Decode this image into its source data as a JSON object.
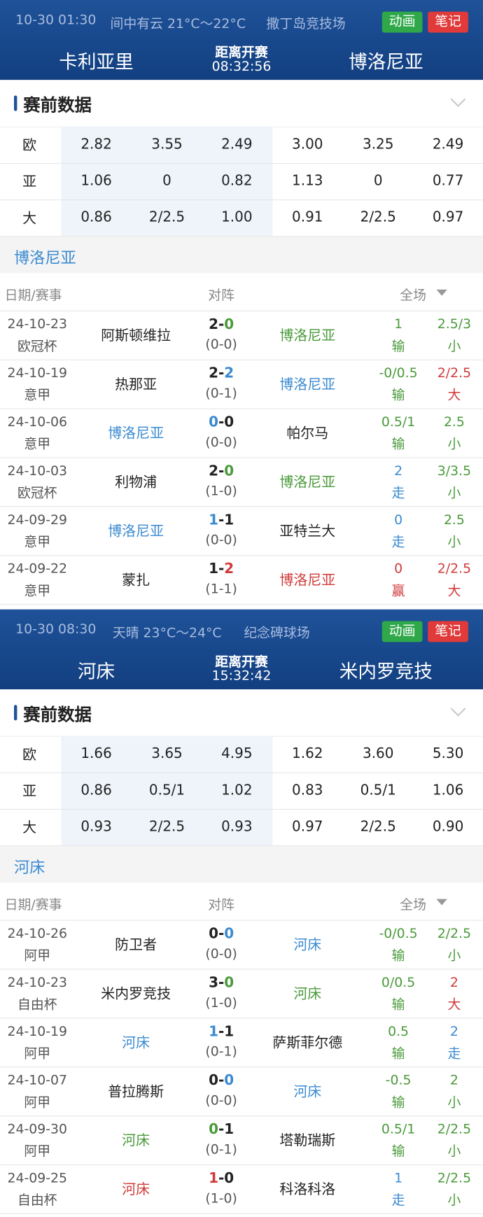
{
  "matches": [
    {
      "time": "10-30 01:30",
      "weather": "间中有云 21°C～22°C",
      "venue": "撒丁岛竞技场",
      "btn_anim": "动画",
      "btn_note": "笔记",
      "home": "卡利亚里",
      "away": "博洛尼亚",
      "countdown_label": "距离开赛",
      "countdown": "08:32:56",
      "section_title": "赛前数据",
      "odds": [
        [
          "欧",
          "2.82",
          "3.55",
          "2.49",
          "3.00",
          "3.25",
          "2.49"
        ],
        [
          "亚",
          "1.06",
          "0",
          "0.82",
          "1.13",
          "0",
          "0.77"
        ],
        [
          "大",
          "0.86",
          "2/2.5",
          "1.00",
          "0.91",
          "2/2.5",
          "0.97"
        ]
      ],
      "team_label": "博洛尼亚",
      "list_header": {
        "date": "日期/赛事",
        "vs": "对阵",
        "full": "全场"
      },
      "rows": [
        {
          "date": "24-10-23",
          "comp": "欧冠杯",
          "home": "阿斯顿维拉",
          "home_color": "#222",
          "score": [
            "2",
            "-",
            "0"
          ],
          "score_colors": [
            "#222",
            "#222",
            "#4a9a3a"
          ],
          "ht": "(0-0)",
          "away": "博洛尼亚",
          "away_color": "#4a9a3a",
          "hcap": "1",
          "hcap_res": "输",
          "hcap_color": "#4a9a3a",
          "total": "2.5/3",
          "total_res": "小",
          "total_color": "#4a9a3a"
        },
        {
          "date": "24-10-19",
          "comp": "意甲",
          "home": "热那亚",
          "home_color": "#222",
          "score": [
            "2",
            "-",
            "2"
          ],
          "score_colors": [
            "#222",
            "#222",
            "#3a8ad0"
          ],
          "ht": "(0-1)",
          "away": "博洛尼亚",
          "away_color": "#3a8ad0",
          "hcap": "-0/0.5",
          "hcap_res": "输",
          "hcap_color": "#4a9a3a",
          "total": "2/2.5",
          "total_res": "大",
          "total_color": "#d03a3a"
        },
        {
          "date": "24-10-06",
          "comp": "意甲",
          "home": "博洛尼亚",
          "home_color": "#3a8ad0",
          "score": [
            "0",
            "-",
            "0"
          ],
          "score_colors": [
            "#3a8ad0",
            "#222",
            "#222"
          ],
          "ht": "(0-0)",
          "away": "帕尔马",
          "away_color": "#222",
          "hcap": "0.5/1",
          "hcap_res": "输",
          "hcap_color": "#4a9a3a",
          "total": "2.5",
          "total_res": "小",
          "total_color": "#4a9a3a"
        },
        {
          "date": "24-10-03",
          "comp": "欧冠杯",
          "home": "利物浦",
          "home_color": "#222",
          "score": [
            "2",
            "-",
            "0"
          ],
          "score_colors": [
            "#222",
            "#222",
            "#4a9a3a"
          ],
          "ht": "(1-0)",
          "away": "博洛尼亚",
          "away_color": "#4a9a3a",
          "hcap": "2",
          "hcap_res": "走",
          "hcap_color": "#3a8ad0",
          "total": "3/3.5",
          "total_res": "小",
          "total_color": "#4a9a3a"
        },
        {
          "date": "24-09-29",
          "comp": "意甲",
          "home": "博洛尼亚",
          "home_color": "#3a8ad0",
          "score": [
            "1",
            "-",
            "1"
          ],
          "score_colors": [
            "#3a8ad0",
            "#222",
            "#222"
          ],
          "ht": "(0-0)",
          "away": "亚特兰大",
          "away_color": "#222",
          "hcap": "0",
          "hcap_res": "走",
          "hcap_color": "#3a8ad0",
          "total": "2.5",
          "total_res": "小",
          "total_color": "#4a9a3a"
        },
        {
          "date": "24-09-22",
          "comp": "意甲",
          "home": "蒙扎",
          "home_color": "#222",
          "score": [
            "1",
            "-",
            "2"
          ],
          "score_colors": [
            "#222",
            "#222",
            "#d03a3a"
          ],
          "ht": "(1-1)",
          "away": "博洛尼亚",
          "away_color": "#d03a3a",
          "hcap": "0",
          "hcap_res": "赢",
          "hcap_color": "#d03a3a",
          "total": "2/2.5",
          "total_res": "大",
          "total_color": "#d03a3a"
        }
      ]
    },
    {
      "time": "10-30 08:30",
      "weather": "天晴 23°C～24°C",
      "venue": "纪念碑球场",
      "btn_anim": "动画",
      "btn_note": "笔记",
      "home": "河床",
      "away": "米内罗竞技",
      "countdown_label": "距离开赛",
      "countdown": "15:32:42",
      "section_title": "赛前数据",
      "odds": [
        [
          "欧",
          "1.66",
          "3.65",
          "4.95",
          "1.62",
          "3.60",
          "5.30"
        ],
        [
          "亚",
          "0.86",
          "0.5/1",
          "1.02",
          "0.83",
          "0.5/1",
          "1.06"
        ],
        [
          "大",
          "0.93",
          "2/2.5",
          "0.93",
          "0.97",
          "2/2.5",
          "0.90"
        ]
      ],
      "team_label": "河床",
      "list_header": {
        "date": "日期/赛事",
        "vs": "对阵",
        "full": "全场"
      },
      "rows": [
        {
          "date": "24-10-26",
          "comp": "阿甲",
          "home": "防卫者",
          "home_color": "#222",
          "score": [
            "0",
            "-",
            "0"
          ],
          "score_colors": [
            "#222",
            "#222",
            "#3a8ad0"
          ],
          "ht": "(0-0)",
          "away": "河床",
          "away_color": "#3a8ad0",
          "hcap": "-0/0.5",
          "hcap_res": "输",
          "hcap_color": "#4a9a3a",
          "total": "2/2.5",
          "total_res": "小",
          "total_color": "#4a9a3a"
        },
        {
          "date": "24-10-23",
          "comp": "自由杯",
          "home": "米内罗竞技",
          "home_color": "#222",
          "score": [
            "3",
            "-",
            "0"
          ],
          "score_colors": [
            "#222",
            "#222",
            "#4a9a3a"
          ],
          "ht": "(1-0)",
          "away": "河床",
          "away_color": "#4a9a3a",
          "hcap": "0/0.5",
          "hcap_res": "输",
          "hcap_color": "#4a9a3a",
          "total": "2",
          "total_res": "大",
          "total_color": "#d03a3a"
        },
        {
          "date": "24-10-19",
          "comp": "阿甲",
          "home": "河床",
          "home_color": "#3a8ad0",
          "score": [
            "1",
            "-",
            "1"
          ],
          "score_colors": [
            "#3a8ad0",
            "#222",
            "#222"
          ],
          "ht": "(0-1)",
          "away": "萨斯菲尔德",
          "away_color": "#222",
          "hcap": "0.5",
          "hcap_res": "输",
          "hcap_color": "#4a9a3a",
          "total": "2",
          "total_res": "走",
          "total_color": "#3a8ad0"
        },
        {
          "date": "24-10-07",
          "comp": "阿甲",
          "home": "普拉腾斯",
          "home_color": "#222",
          "score": [
            "0",
            "-",
            "0"
          ],
          "score_colors": [
            "#222",
            "#222",
            "#3a8ad0"
          ],
          "ht": "(0-0)",
          "away": "河床",
          "away_color": "#3a8ad0",
          "hcap": "-0.5",
          "hcap_res": "输",
          "hcap_color": "#4a9a3a",
          "total": "2",
          "total_res": "小",
          "total_color": "#4a9a3a"
        },
        {
          "date": "24-09-30",
          "comp": "阿甲",
          "home": "河床",
          "home_color": "#4a9a3a",
          "score": [
            "0",
            "-",
            "1"
          ],
          "score_colors": [
            "#4a9a3a",
            "#222",
            "#222"
          ],
          "ht": "(0-1)",
          "away": "塔勒瑞斯",
          "away_color": "#222",
          "hcap": "0.5/1",
          "hcap_res": "输",
          "hcap_color": "#4a9a3a",
          "total": "2/2.5",
          "total_res": "小",
          "total_color": "#4a9a3a"
        },
        {
          "date": "24-09-25",
          "comp": "自由杯",
          "home": "河床",
          "home_color": "#d03a3a",
          "score": [
            "1",
            "-",
            "0"
          ],
          "score_colors": [
            "#d03a3a",
            "#222",
            "#222"
          ],
          "ht": "(1-0)",
          "away": "科洛科洛",
          "away_color": "#222",
          "hcap": "1",
          "hcap_res": "走",
          "hcap_color": "#3a8ad0",
          "total": "2/2.5",
          "total_res": "小",
          "total_color": "#4a9a3a"
        }
      ]
    }
  ]
}
